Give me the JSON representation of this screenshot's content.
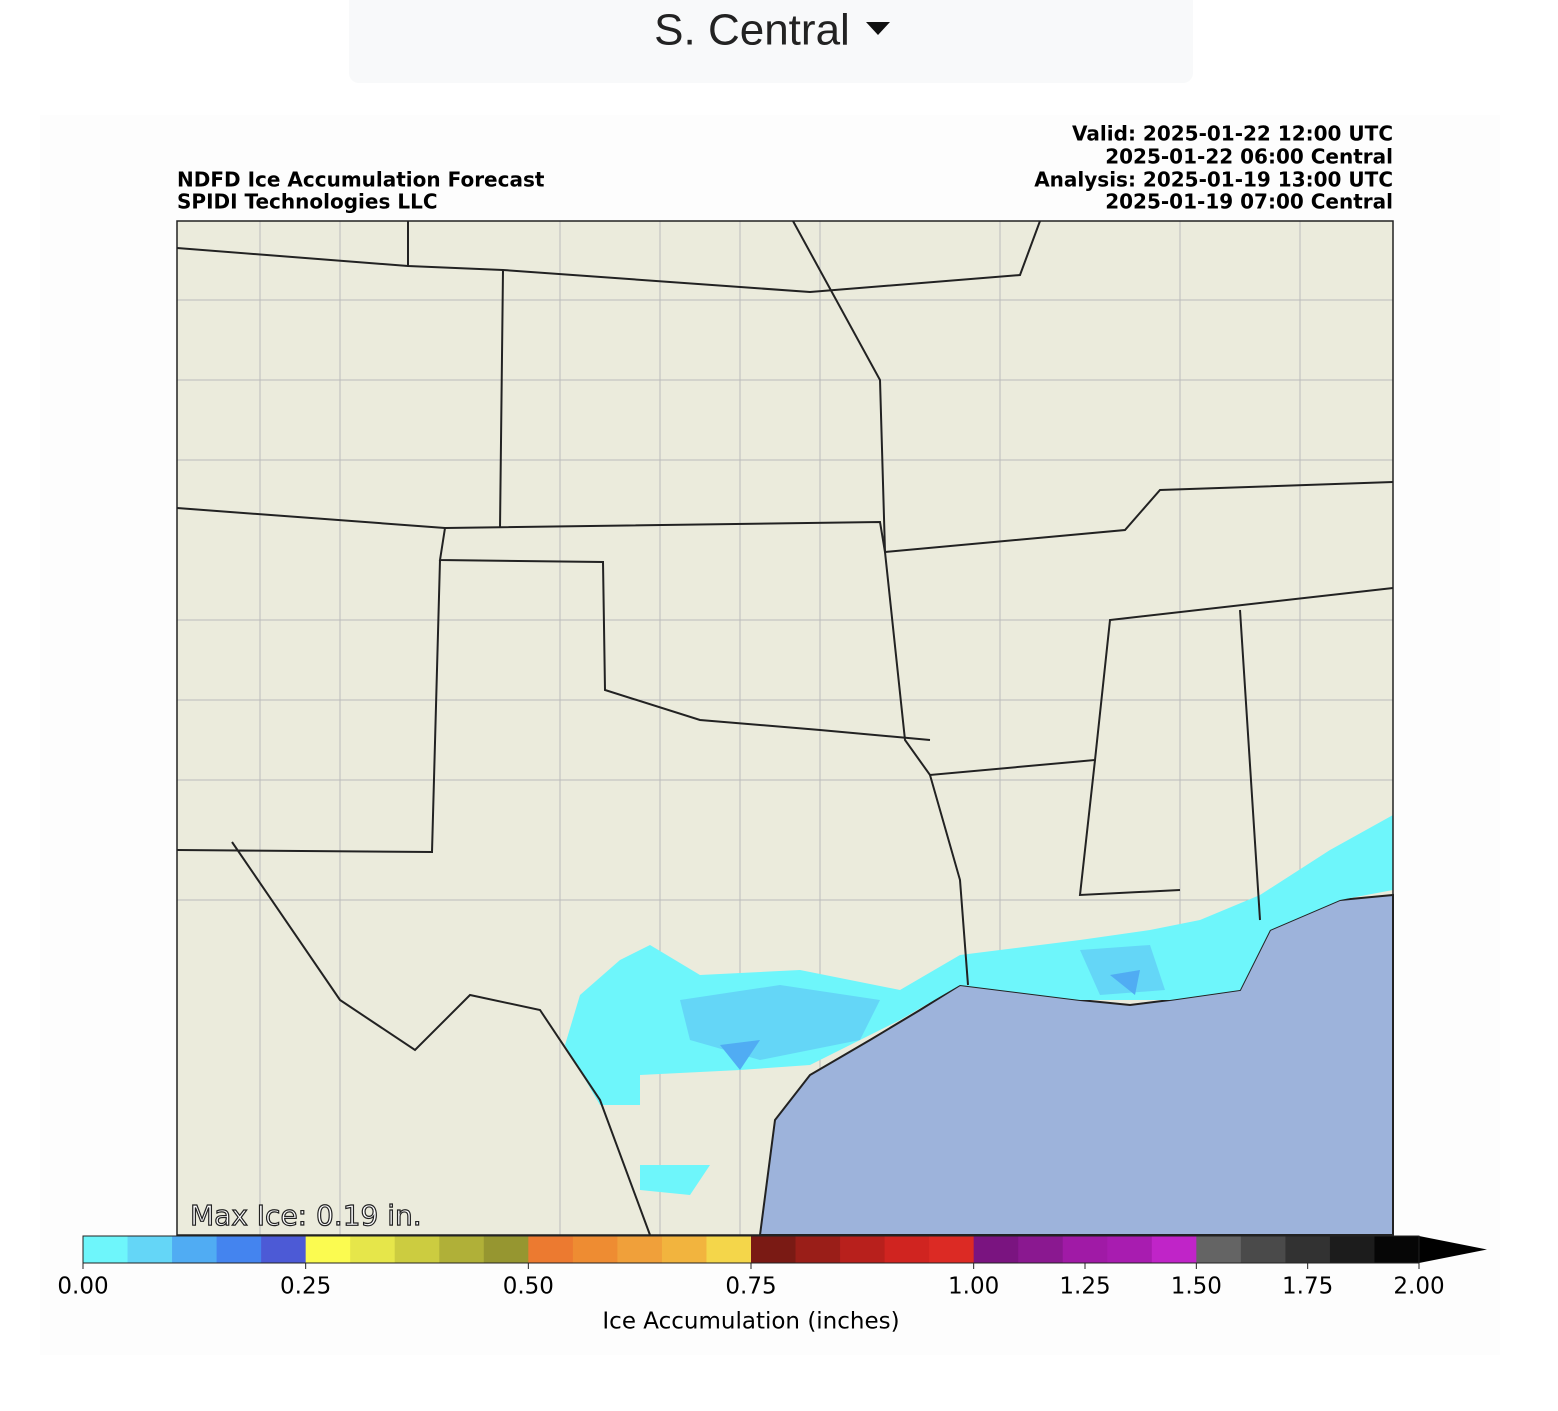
{
  "dropdown": {
    "label": "S. Central"
  },
  "map": {
    "title_lines": [
      "NDFD Ice Accumulation Forecast",
      "SPIDI Technologies LLC"
    ],
    "time_lines": [
      "Valid: 2025-01-22 12:00 UTC",
      "2025-01-22 06:00 Central",
      "Analysis: 2025-01-19 13:00 UTC",
      "2025-01-19 07:00 Central"
    ],
    "max_ice": "Max Ice: 0.19 in."
  },
  "colorbar": {
    "bounds": [
      0,
      0.05,
      0.1,
      0.15,
      0.2,
      0.25,
      0.3,
      0.35,
      0.4,
      0.45,
      0.5,
      0.55,
      0.6,
      0.65,
      0.7,
      0.75,
      0.8,
      0.85,
      0.9,
      0.95,
      1.0,
      1.1,
      1.2,
      1.3,
      1.4,
      1.5,
      1.6,
      1.7,
      1.8,
      1.9,
      2.0
    ],
    "colors": [
      "#6ef6fb",
      "#64d6f7",
      "#50acf3",
      "#4484ef",
      "#4c5ad6",
      "#fbfb50",
      "#e6e64a",
      "#cccc40",
      "#b0b038",
      "#969630",
      "#ec7a30",
      "#ee8c32",
      "#f0a03a",
      "#f2b43e",
      "#f4d64a",
      "#7a1a14",
      "#9a1e18",
      "#b8201c",
      "#d02420",
      "#dc2a24",
      "#7a1480",
      "#8a1890",
      "#a01aa6",
      "#a81cb0",
      "#c024c8",
      "#646464",
      "#4a4a4a",
      "#323232",
      "#1c1c1c",
      "#060606"
    ],
    "extend_color": "#000000",
    "ticks": [
      {
        "value": 0,
        "label": "0.00"
      },
      {
        "value": 0.25,
        "label": "0.25"
      },
      {
        "value": 0.5,
        "label": "0.50"
      },
      {
        "value": 0.75,
        "label": "0.75"
      },
      {
        "value": 1.0,
        "label": "1.00"
      },
      {
        "value": 1.25,
        "label": "1.25"
      },
      {
        "value": 1.5,
        "label": "1.50"
      },
      {
        "value": 1.75,
        "label": "1.75"
      },
      {
        "value": 2.0,
        "label": "2.00"
      }
    ],
    "label": "Ice Accumulation (inches)"
  }
}
